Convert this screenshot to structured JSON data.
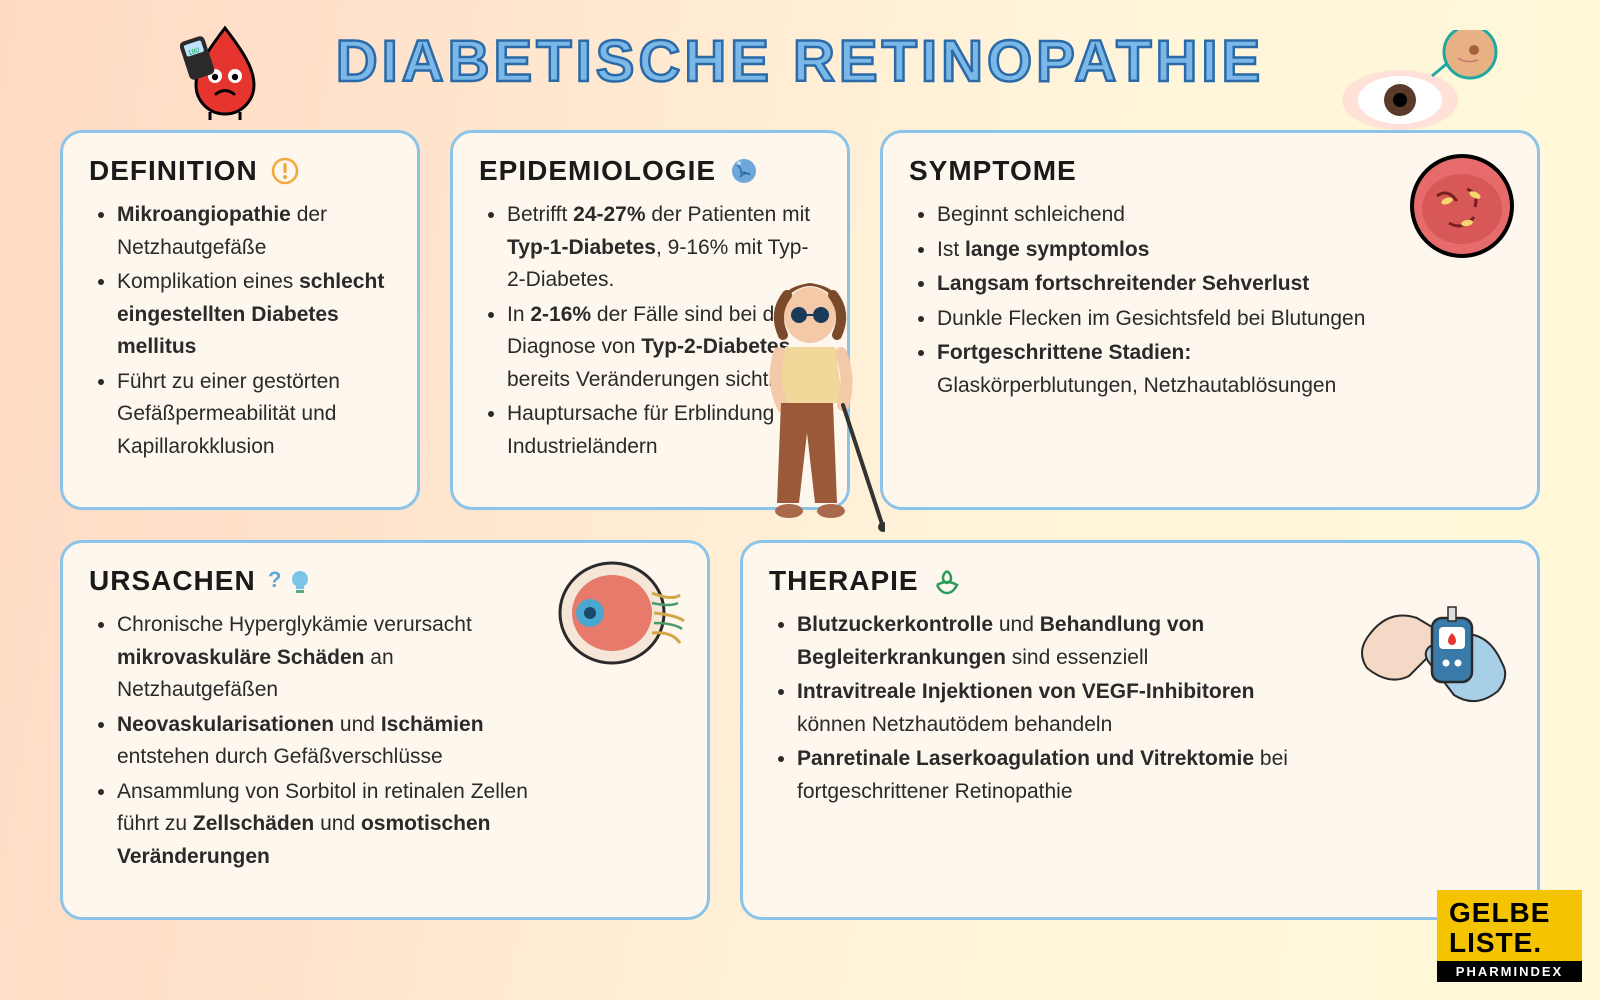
{
  "title": "DIABETISCHE RETINOPATHIE",
  "colors": {
    "bg_grad_from": "#ffd9c4",
    "bg_grad_to": "#fff9d8",
    "card_bg": "#fdf7ee",
    "card_border": "#8bc4e8",
    "title_fill": "#7bb8e8",
    "title_stroke": "#2b6aa8",
    "text": "#2a2a2a",
    "logo_yellow": "#f5c400"
  },
  "header_icons": {
    "blood_drop": "blood-drop-glucometer",
    "eye_lens": "eye-magnified-retina"
  },
  "cards": {
    "definition": {
      "heading": "DEFINITION",
      "icon": "exclamation-circle",
      "items": [
        "<b>Mikroangiopathie</b> der Netzhautgefäße",
        "Komplikation eines <b>schlecht eingestellten Diabetes mellitus</b>",
        "Führt zu einer gestörten Gefäßpermeabilität und Kapillarokklusion"
      ]
    },
    "epidemiologie": {
      "heading": "EPIDEMIOLOGIE",
      "icon": "globe",
      "items": [
        "Betrifft <b>24-27%</b> der Patienten mit <b>Typ-1-Diabetes</b>, 9-16% mit Typ-2-Diabetes.",
        "In <b>2-16%</b> der Fälle sind bei der Diagnose von <b>Typ-2-Diabetes</b> bereits Veränderungen sichtbar",
        "Hauptursache für Erblindung in Industrieländern"
      ]
    },
    "symptome": {
      "heading": "SYMPTOME",
      "icon": "retina-damaged",
      "items": [
        "Beginnt schleichend",
        "Ist <b>lange symptomlos</b>",
        "<b>Langsam fortschreitender Sehverlust</b>",
        "Dunkle Flecken im Gesichtsfeld bei Blutungen",
        "<b>Fortgeschrittene Stadien:</b> Glaskörperblutungen, Netzhautablösungen"
      ]
    },
    "ursachen": {
      "heading": "URSACHEN",
      "icon": "question-bulb",
      "illustration": "eyeball-cross-section",
      "items": [
        "Chronische Hyperglykämie verursacht <b>mikrovaskuläre Schäden</b> an Netzhautgefäßen",
        "<b>Neovaskularisationen</b> und <b>Ischämien</b> entstehen durch Gefäßverschlüsse",
        "Ansammlung von Sorbitol in retinalen Zellen führt zu <b>Zellschäden</b> und <b>osmotischen Veränderungen</b>"
      ]
    },
    "therapie": {
      "heading": "THERAPIE",
      "icon": "hand-care",
      "illustration": "hands-glucometer",
      "items": [
        "<b>Blutzuckerkontrolle</b> und <b>Behandlung von Begleiterkrankungen</b> sind essenziell",
        "<b>Intravitreale Injektionen von VEGF-Inhibitoren</b> können Netzhautödem behandeln",
        "<b>Panretinale Laserkoagulation und Vitrektomie</b> bei fortgeschrittener Retinopathie"
      ]
    }
  },
  "center_illustration": "blind-person-walking-cane",
  "logo": {
    "line1": "GELBE",
    "line2": "LISTE.",
    "sub": "PHARMINDEX"
  }
}
